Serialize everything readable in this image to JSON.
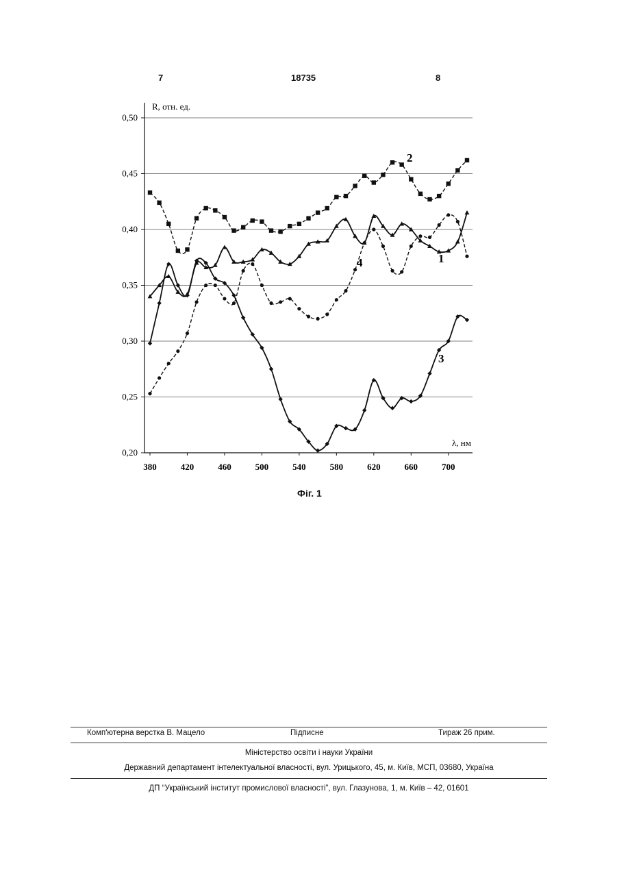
{
  "header": {
    "page_left": "7",
    "patent_number": "18735",
    "page_right": "8"
  },
  "figure_caption": "Фіг. 1",
  "chart_data": {
    "type": "line",
    "ylabel": "R, отн. ед.",
    "xlabel": "λ, нм",
    "xlim": [
      375,
      725
    ],
    "ylim": [
      0.2,
      0.5
    ],
    "x_ticks": [
      "380",
      "420",
      "460",
      "500",
      "540",
      "580",
      "620",
      "660",
      "700"
    ],
    "y_ticks": [
      "0,50",
      "0,45",
      "0,40",
      "0,35",
      "0,30",
      "0,25",
      "0,20"
    ],
    "grid": "horizontal",
    "series": [
      {
        "name": "1",
        "style": "solid",
        "marker": "triangle",
        "x": [
          380,
          390,
          400,
          410,
          420,
          430,
          440,
          450,
          460,
          470,
          480,
          490,
          500,
          510,
          520,
          530,
          540,
          550,
          560,
          570,
          580,
          590,
          600,
          610,
          620,
          630,
          640,
          650,
          660,
          670,
          680,
          690,
          700,
          710,
          720
        ],
        "y": [
          0.34,
          0.35,
          0.358,
          0.344,
          0.342,
          0.37,
          0.366,
          0.368,
          0.384,
          0.371,
          0.371,
          0.373,
          0.382,
          0.379,
          0.371,
          0.369,
          0.376,
          0.387,
          0.389,
          0.39,
          0.403,
          0.409,
          0.394,
          0.388,
          0.412,
          0.403,
          0.395,
          0.405,
          0.4,
          0.39,
          0.385,
          0.38,
          0.381,
          0.389,
          0.415
        ]
      },
      {
        "name": "2",
        "style": "dashed",
        "marker": "square",
        "x": [
          380,
          390,
          400,
          410,
          420,
          430,
          440,
          450,
          460,
          470,
          480,
          490,
          500,
          510,
          520,
          530,
          540,
          550,
          560,
          570,
          580,
          590,
          600,
          610,
          620,
          630,
          640,
          650,
          660,
          670,
          680,
          690,
          700,
          710,
          720
        ],
        "y": [
          0.433,
          0.424,
          0.405,
          0.381,
          0.382,
          0.41,
          0.419,
          0.417,
          0.411,
          0.399,
          0.402,
          0.408,
          0.407,
          0.399,
          0.398,
          0.403,
          0.405,
          0.41,
          0.415,
          0.419,
          0.429,
          0.43,
          0.439,
          0.448,
          0.442,
          0.449,
          0.46,
          0.458,
          0.445,
          0.432,
          0.427,
          0.43,
          0.441,
          0.453,
          0.462
        ]
      },
      {
        "name": "3",
        "style": "solid",
        "marker": "diamond",
        "x": [
          380,
          390,
          400,
          410,
          420,
          430,
          440,
          450,
          460,
          470,
          480,
          490,
          500,
          510,
          520,
          530,
          540,
          550,
          560,
          570,
          580,
          590,
          600,
          610,
          620,
          630,
          640,
          650,
          660,
          670,
          680,
          690,
          700,
          710,
          720
        ],
        "y": [
          0.298,
          0.334,
          0.369,
          0.35,
          0.341,
          0.372,
          0.37,
          0.356,
          0.352,
          0.341,
          0.321,
          0.306,
          0.294,
          0.275,
          0.248,
          0.228,
          0.221,
          0.21,
          0.202,
          0.208,
          0.224,
          0.222,
          0.221,
          0.238,
          0.265,
          0.249,
          0.24,
          0.249,
          0.246,
          0.251,
          0.271,
          0.292,
          0.3,
          0.322,
          0.319
        ]
      },
      {
        "name": "4",
        "style": "dashed",
        "marker": "circle",
        "x": [
          380,
          390,
          400,
          410,
          420,
          430,
          440,
          450,
          460,
          470,
          480,
          490,
          500,
          510,
          520,
          530,
          540,
          550,
          560,
          570,
          580,
          590,
          600,
          610,
          620,
          630,
          640,
          650,
          660,
          670,
          680,
          690,
          700,
          710,
          720
        ],
        "y": [
          0.253,
          0.267,
          0.28,
          0.291,
          0.307,
          0.335,
          0.35,
          0.35,
          0.338,
          0.334,
          0.363,
          0.369,
          0.35,
          0.334,
          0.335,
          0.338,
          0.329,
          0.322,
          0.32,
          0.324,
          0.337,
          0.345,
          0.364,
          0.388,
          0.4,
          0.385,
          0.363,
          0.362,
          0.385,
          0.394,
          0.393,
          0.404,
          0.413,
          0.407,
          0.376
        ]
      }
    ]
  },
  "footer": {
    "layout": "Комп'ютерна верстка В. Мацело",
    "signed": "Підписне",
    "print_run": "Тираж 26 прим.",
    "ministry": "Міністерство освіти і науки України",
    "department": "Державний департамент інтелектуальної власності, вул. Урицького, 45, м. Київ, МСП, 03680, Україна",
    "institute": "ДП “Український інститут промислової власності”, вул. Глазунова, 1, м. Київ – 42, 01601"
  }
}
